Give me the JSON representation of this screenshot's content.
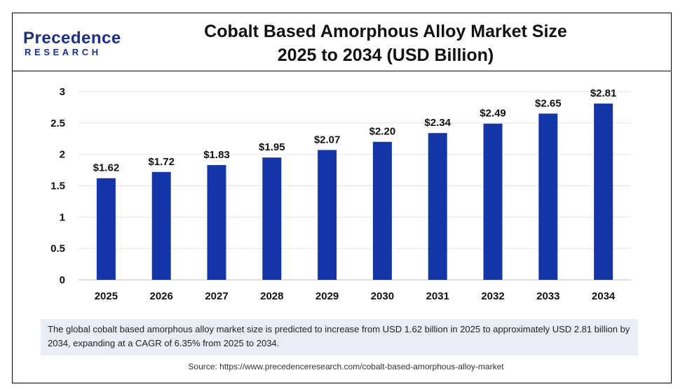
{
  "logo": {
    "top": "Precedence",
    "bottom": "RESEARCH"
  },
  "title_line1": "Cobalt Based Amorphous Alloy Market Size",
  "title_line2": "2025 to 2034 (USD Billion)",
  "note": "The global cobalt based amorphous alloy market size is predicted to increase from USD 1.62 billion in 2025 to approximately USD 2.81 billion by 2034, expanding at a CAGR of 6.35% from 2025 to 2034.",
  "source": "Source: https://www.precedenceresearch.com/cobalt-based-amorphous-alloy-market",
  "colors": {
    "bar": "#1536a8",
    "brand": "#1a2f86",
    "note_bg": "#e9eef6"
  },
  "chart_data": {
    "type": "bar",
    "categories": [
      "2025",
      "2026",
      "2027",
      "2028",
      "2029",
      "2030",
      "2031",
      "2032",
      "2033",
      "2034"
    ],
    "values": [
      1.62,
      1.72,
      1.83,
      1.95,
      2.07,
      2.2,
      2.34,
      2.49,
      2.65,
      2.81
    ],
    "data_labels": [
      "$1.62",
      "$1.72",
      "$1.83",
      "$1.95",
      "$2.07",
      "$2.20",
      "$2.34",
      "$2.49",
      "$2.65",
      "$2.81"
    ],
    "yticks": [
      "0",
      "0.5",
      "1",
      "1.5",
      "2",
      "2.5",
      "3"
    ],
    "ylim": [
      0,
      3
    ],
    "grid": true,
    "title": "Cobalt Based Amorphous Alloy Market Size 2025 to 2034 (USD Billion)",
    "xlabel": "",
    "ylabel": ""
  }
}
